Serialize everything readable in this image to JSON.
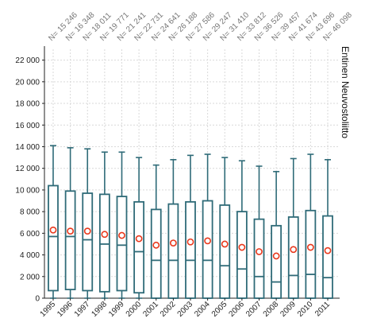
{
  "chart_data": {
    "type": "boxplot",
    "title": "Entinen Neuvostoliitto",
    "xlabel": "",
    "ylabel": "",
    "ylim": [
      0,
      23000
    ],
    "yticks": [
      0,
      2000,
      4000,
      6000,
      8000,
      10000,
      12000,
      14000,
      16000,
      18000,
      20000,
      22000
    ],
    "ytick_labels": [
      "0",
      "2 000",
      "4 000",
      "6 000",
      "8 000",
      "10 000",
      "12 000",
      "14 000",
      "16 000",
      "18 000",
      "20 000",
      "22 000"
    ],
    "grid": true,
    "categories": [
      "1995",
      "1996",
      "1997",
      "1998",
      "1999",
      "2000",
      "2001",
      "2002",
      "2003",
      "2004",
      "2005",
      "2006",
      "2007",
      "2008",
      "2009",
      "2010",
      "2011"
    ],
    "n_labels": [
      "N= 15 246",
      "N= 16 348",
      "N= 18 011",
      "N= 19 771",
      "N= 21 241",
      "N= 22 731",
      "N= 24 641",
      "N= 26 188",
      "N= 27 586",
      "N= 29 247",
      "N= 31 410",
      "N= 33 812",
      "N= 36 526",
      "N= 39 457",
      "N= 41 674",
      "N= 43 696",
      "N= 46 098"
    ],
    "whisker_low": [
      0,
      0,
      0,
      0,
      0,
      0,
      0,
      0,
      0,
      0,
      0,
      0,
      0,
      0,
      0,
      0,
      0
    ],
    "q1": [
      700,
      800,
      700,
      600,
      700,
      500,
      0,
      0,
      0,
      0,
      0,
      0,
      0,
      0,
      0,
      0,
      0
    ],
    "median": [
      5700,
      5700,
      5400,
      5000,
      4900,
      4300,
      3500,
      3500,
      3500,
      3500,
      3000,
      2700,
      2000,
      1500,
      2100,
      2200,
      1900
    ],
    "q3": [
      10400,
      9900,
      9700,
      9600,
      9400,
      8900,
      8200,
      8700,
      8900,
      9000,
      8600,
      8000,
      7300,
      6700,
      7500,
      8100,
      7600
    ],
    "whisker_high": [
      14100,
      13900,
      13800,
      13500,
      13500,
      13000,
      12300,
      12800,
      13200,
      13300,
      13000,
      12700,
      12200,
      11700,
      12900,
      13300,
      12800
    ],
    "mean": [
      6300,
      6200,
      6200,
      5900,
      5800,
      5500,
      4900,
      5100,
      5200,
      5300,
      5000,
      4700,
      4300,
      3900,
      4500,
      4700,
      4400
    ],
    "colors": {
      "box": "#2f6b78",
      "mean_marker_edge": "#e8381c",
      "grid": "#d9d9d9",
      "axis": "#222222"
    }
  }
}
